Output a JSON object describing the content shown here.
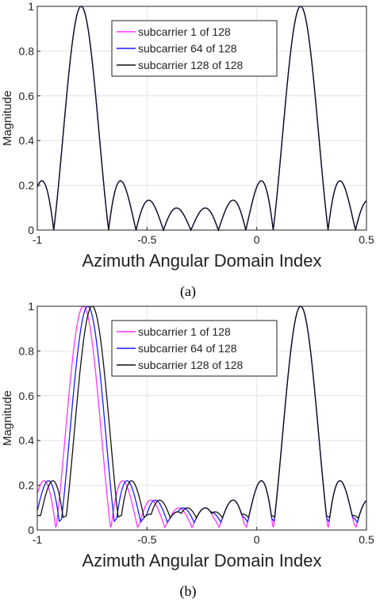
{
  "chart_data": [
    {
      "type": "line",
      "caption": "(a)",
      "xlabel": "Azimuth Angular Domain Index",
      "ylabel": "Magnitude",
      "xlim": [
        -1,
        0.5
      ],
      "ylim": [
        0,
        1
      ],
      "xticks": [
        "-1",
        "-0.5",
        "0",
        "0.5"
      ],
      "yticks": [
        "0",
        "0.2",
        "0.4",
        "0.6",
        "0.8",
        "1"
      ],
      "grid": true,
      "legend_position": "top-center",
      "n_antennas": 16,
      "series": [
        {
          "name": "subcarrier 1 of 128",
          "color": "#ff33ff",
          "peaks": [
            -0.8,
            0.2
          ]
        },
        {
          "name": "subcarrier 64 of 128",
          "color": "#1a1aff",
          "peaks": [
            -0.8,
            0.2
          ]
        },
        {
          "name": "subcarrier 128 of 128",
          "color": "#111111",
          "peaks": [
            -0.8,
            0.2
          ]
        }
      ]
    },
    {
      "type": "line",
      "caption": "(b)",
      "xlabel": "Azimuth Angular Domain Index",
      "ylabel": "Magnitude",
      "xlim": [
        -1,
        0.5
      ],
      "ylim": [
        0,
        1
      ],
      "xticks": [
        "-1",
        "-0.5",
        "0",
        "0.5"
      ],
      "yticks": [
        "0",
        "0.2",
        "0.4",
        "0.6",
        "0.8",
        "1"
      ],
      "grid": true,
      "legend_position": "top-center",
      "n_antennas": 16,
      "series": [
        {
          "name": "subcarrier 1 of 128",
          "color": "#ff33ff",
          "peaks": [
            -0.79,
            0.2
          ]
        },
        {
          "name": "subcarrier 64 of 128",
          "color": "#1a1aff",
          "peaks": [
            -0.77,
            0.2
          ]
        },
        {
          "name": "subcarrier 128 of 128",
          "color": "#111111",
          "peaks": [
            -0.75,
            0.2
          ]
        }
      ]
    }
  ]
}
